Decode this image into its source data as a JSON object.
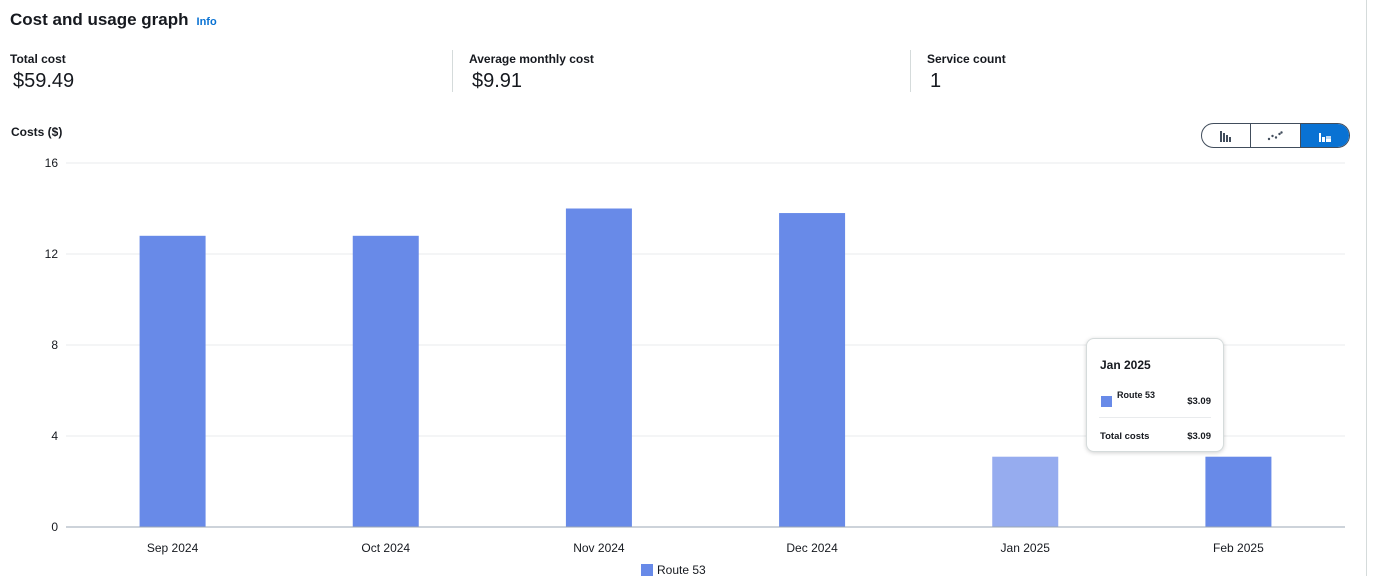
{
  "header": {
    "title": "Cost and usage graph",
    "info_label": "Info"
  },
  "metrics": [
    {
      "label": "Total cost",
      "value": "$59.49"
    },
    {
      "label": "Average monthly cost",
      "value": "$9.91"
    },
    {
      "label": "Service count",
      "value": "1"
    }
  ],
  "chart_type_toggle": [
    {
      "icon": "bar-chart-icon",
      "active": false
    },
    {
      "icon": "line-chart-icon",
      "active": false
    },
    {
      "icon": "stacked-bar-chart-icon",
      "active": true
    }
  ],
  "chart_data": {
    "type": "bar",
    "ylabel": "Costs ($)",
    "xlabel": "",
    "ylim": [
      0,
      16
    ],
    "yticks": [
      0,
      4,
      8,
      12,
      16
    ],
    "categories": [
      "Sep 2024",
      "Oct 2024",
      "Nov 2024",
      "Dec 2024",
      "Jan 2025",
      "Feb 2025"
    ],
    "series": [
      {
        "name": "Route 53",
        "values": [
          12.8,
          12.8,
          14.0,
          13.8,
          3.09,
          3.09
        ]
      }
    ],
    "highlighted_index": 4,
    "colors": {
      "bar": "#688ae8",
      "bar_highlighted": "#96acef",
      "grid": "#e9ebed",
      "axis": "#9ba7b6"
    },
    "grid": true,
    "legend_position": "bottom"
  },
  "tooltip": {
    "title": "Jan 2025",
    "series_name": "Route 53",
    "series_value": "$3.09",
    "total_label": "Total costs",
    "total_value": "$3.09"
  }
}
